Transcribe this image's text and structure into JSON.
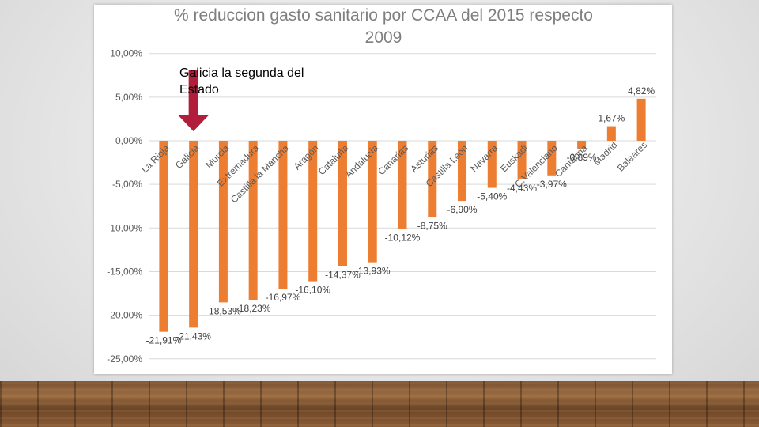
{
  "chart_data": {
    "type": "bar",
    "title_lines": [
      "% reduccion gasto sanitario por CCAA  del 2015 respecto",
      "2009"
    ],
    "categories": [
      "La Rioja",
      "Galicia",
      "Murcia",
      "Extremadura",
      "Castilla la Mancha",
      "Aragón",
      "Cataluña",
      "Andalucía",
      "Canarias",
      "Asturias",
      "Castilla León",
      "Navarra",
      "Euskadi",
      "C.Valenciano",
      "Cantabria",
      "Madrid",
      "Baleares"
    ],
    "values": [
      -21.91,
      -21.43,
      -18.53,
      -18.23,
      -16.97,
      -16.1,
      -14.37,
      -13.93,
      -10.12,
      -8.75,
      -6.9,
      -5.4,
      -4.43,
      -3.97,
      -0.89,
      1.67,
      4.82
    ],
    "value_labels": [
      "-21,91%",
      "-21,43%",
      "-18,53%",
      "-18,23%",
      "-16,97%",
      "-16,10%",
      "-14,37%",
      "-13,93%",
      "-10,12%",
      "-8,75%",
      "-6,90%",
      "-5,40%",
      "-4,43%",
      "-3,97%",
      "-0,89%",
      "1,67%",
      "4,82%"
    ],
    "y_ticks": [
      10,
      5,
      0,
      -5,
      -10,
      -15,
      -20,
      -25
    ],
    "y_tick_labels": [
      "10,00%",
      "5,00%",
      "0,00%",
      "-5,00%",
      "-10,00%",
      "-15,00%",
      "-20,00%",
      "-25,00%"
    ],
    "ylim": [
      -25,
      10
    ],
    "xlabel": "",
    "ylabel": "",
    "grid": true,
    "legend": "none",
    "bar_color": "#ed7d31"
  },
  "annotation": {
    "text": "Galicia la segunda del Estado",
    "arrow_color": "#b01e3c",
    "target_category": "Galicia"
  }
}
